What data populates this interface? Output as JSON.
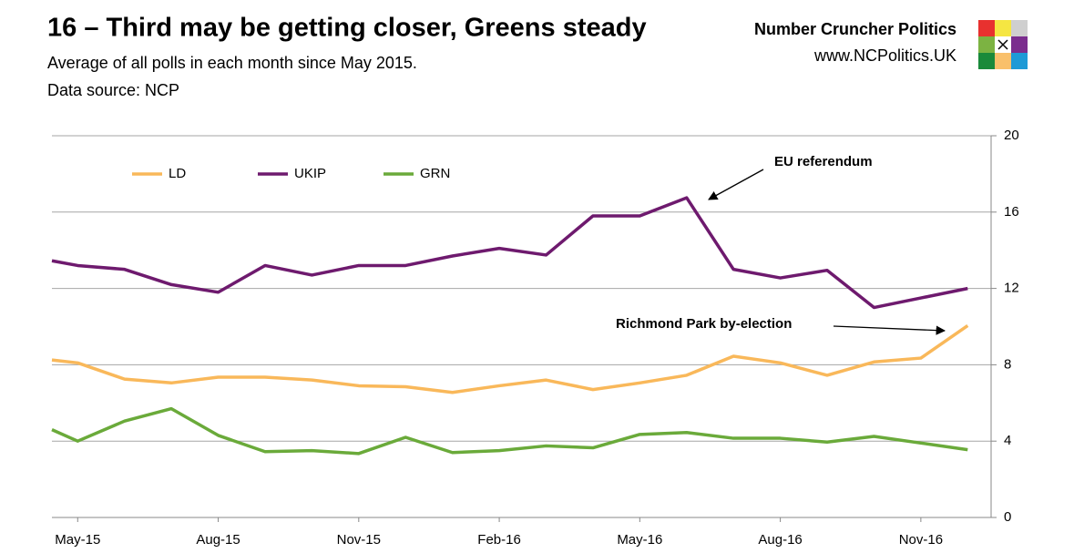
{
  "chart_data": {
    "type": "line",
    "title": "16 – Third may be getting closer, Greens steady",
    "subtitle": "Average of all polls in each month since May 2015.",
    "source": "Data source: NCP",
    "brand": "Number Cruncher Politics",
    "website": "www.NCPolitics.UK",
    "x": [
      -0.55,
      0,
      1,
      2,
      3,
      4,
      5,
      6,
      7,
      8,
      9,
      10,
      11,
      12,
      13,
      14,
      15,
      16,
      17,
      18,
      19
    ],
    "xlim": [
      -0.55,
      19.5
    ],
    "xticks": [
      {
        "value": 0,
        "label": "May-15"
      },
      {
        "value": 3,
        "label": "Aug-15"
      },
      {
        "value": 6,
        "label": "Nov-15"
      },
      {
        "value": 9,
        "label": "Feb-16"
      },
      {
        "value": 12,
        "label": "May-16"
      },
      {
        "value": 15,
        "label": "Aug-16"
      },
      {
        "value": 18,
        "label": "Nov-16"
      }
    ],
    "ylim": [
      0,
      20
    ],
    "yticks": [
      0,
      4,
      8,
      12,
      16,
      20
    ],
    "grid": true,
    "series": [
      {
        "name": "LD",
        "color": "#f9b85a",
        "values": [
          8.25,
          8.1,
          7.25,
          7.05,
          7.35,
          7.35,
          7.2,
          6.9,
          6.85,
          6.55,
          6.9,
          7.2,
          6.7,
          7.05,
          7.45,
          8.45,
          8.1,
          7.45,
          8.15,
          8.35,
          10.05
        ]
      },
      {
        "name": "UKIP",
        "color": "#6e1a6e",
        "values": [
          13.45,
          13.2,
          13.0,
          12.2,
          11.8,
          13.2,
          12.7,
          13.2,
          13.2,
          13.7,
          14.1,
          13.75,
          15.8,
          15.8,
          16.75,
          13.0,
          12.55,
          12.95,
          11.0,
          11.5,
          12.0
        ]
      },
      {
        "name": "GRN",
        "color": "#6aaa3a",
        "values": [
          4.6,
          4.0,
          5.05,
          5.7,
          4.3,
          3.45,
          3.5,
          3.35,
          4.2,
          3.4,
          3.5,
          3.75,
          3.65,
          4.35,
          4.45,
          4.15,
          4.15,
          3.95,
          4.25,
          3.9,
          3.55
        ]
      }
    ],
    "annotations": [
      "EU referendum",
      "Richmond Park by-election"
    ]
  }
}
